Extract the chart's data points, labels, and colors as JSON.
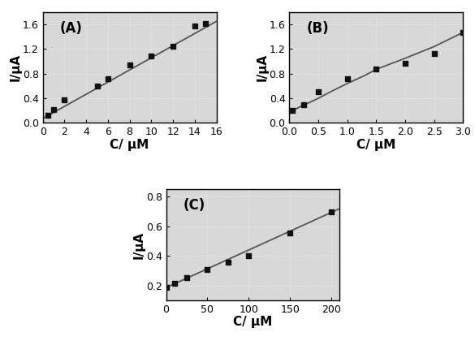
{
  "panel_A": {
    "label": "(A)",
    "x": [
      0.5,
      1,
      2,
      5,
      6,
      8,
      10,
      12,
      14,
      15
    ],
    "y": [
      0.13,
      0.22,
      0.38,
      0.6,
      0.72,
      0.94,
      1.08,
      1.25,
      1.58,
      1.61
    ],
    "fit_x": [
      0,
      16
    ],
    "fit_y": [
      0.07,
      1.65
    ],
    "xlabel": "C/ μM",
    "ylabel": "I/μA",
    "xlim": [
      0,
      16
    ],
    "ylim": [
      0.0,
      1.8
    ],
    "xticks": [
      0,
      2,
      4,
      6,
      8,
      10,
      12,
      14,
      16
    ],
    "yticks": [
      0.0,
      0.4,
      0.8,
      1.2,
      1.6
    ]
  },
  "panel_B": {
    "label": "(B)",
    "x": [
      0.05,
      0.25,
      0.5,
      1.0,
      1.5,
      2.0,
      2.5,
      3.0
    ],
    "y": [
      0.2,
      0.3,
      0.5,
      0.72,
      0.88,
      0.97,
      1.12,
      1.47
    ],
    "fit_x": [
      0.0,
      0.05,
      0.1,
      0.2,
      0.3,
      0.5,
      0.7,
      1.0,
      1.3,
      1.5,
      2.0,
      2.5,
      3.0
    ],
    "fit_y": [
      0.16,
      0.2,
      0.22,
      0.27,
      0.31,
      0.4,
      0.5,
      0.64,
      0.77,
      0.87,
      1.05,
      1.24,
      1.47
    ],
    "xlabel": "C/ μM",
    "ylabel": "I/μA",
    "xlim": [
      0.0,
      3.0
    ],
    "ylim": [
      0.0,
      1.8
    ],
    "xticks": [
      0.0,
      0.5,
      1.0,
      1.5,
      2.0,
      2.5,
      3.0
    ],
    "yticks": [
      0.0,
      0.4,
      0.8,
      1.2,
      1.6
    ]
  },
  "panel_C": {
    "label": "(C)",
    "x": [
      0,
      10,
      25,
      50,
      75,
      100,
      150,
      200
    ],
    "y": [
      0.185,
      0.215,
      0.255,
      0.305,
      0.355,
      0.4,
      0.555,
      0.7
    ],
    "fit_x": [
      0,
      210
    ],
    "fit_y": [
      0.185,
      0.72
    ],
    "xlabel": "C/ μM",
    "ylabel": "I/μA",
    "xlim": [
      0,
      210
    ],
    "ylim": [
      0.1,
      0.85
    ],
    "xticks": [
      0,
      50,
      100,
      150,
      200
    ],
    "yticks": [
      0.2,
      0.4,
      0.6,
      0.8
    ]
  },
  "bg_color": "#d8d8d8",
  "line_color": "#555555",
  "marker_color": "#111111",
  "marker_size": 5,
  "label_fontsize": 11,
  "tick_fontsize": 9,
  "panel_label_fontsize": 12
}
